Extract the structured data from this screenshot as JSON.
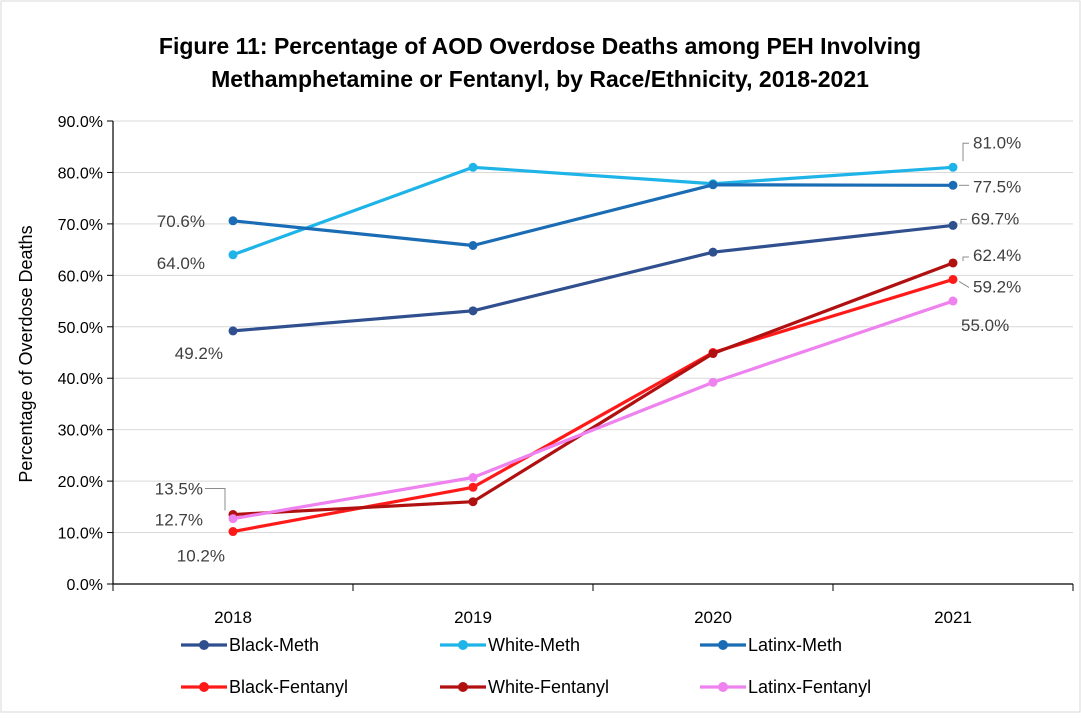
{
  "chart_data": {
    "type": "line",
    "title_lines": [
      "Figure 11: Percentage of AOD Overdose Deaths among PEH Involving",
      "Methamphetamine or Fentanyl, by Race/Ethnicity, 2018-2021"
    ],
    "xlabel": "",
    "ylabel": "Percentage of Overdose Deaths",
    "categories": [
      "2018",
      "2019",
      "2020",
      "2021"
    ],
    "ylim": [
      0,
      90
    ],
    "yticks": [
      0,
      10,
      20,
      30,
      40,
      50,
      60,
      70,
      80,
      90
    ],
    "ytick_labels": [
      "0.0%",
      "10.0%",
      "20.0%",
      "30.0%",
      "40.0%",
      "50.0%",
      "60.0%",
      "70.0%",
      "80.0%",
      "90.0%"
    ],
    "grid": true,
    "legend_position": "bottom",
    "series": [
      {
        "name": "Black-Meth",
        "color": "#2f4f8f",
        "values": [
          49.2,
          53.1,
          64.5,
          69.7
        ]
      },
      {
        "name": "White-Meth",
        "color": "#1fb4e8",
        "values": [
          64.0,
          81.0,
          77.8,
          81.0
        ]
      },
      {
        "name": "Latinx-Meth",
        "color": "#1a6db5",
        "values": [
          70.6,
          65.8,
          77.6,
          77.5
        ]
      },
      {
        "name": "Black-Fentanyl",
        "color": "#ff1a1a",
        "values": [
          10.2,
          18.8,
          45.0,
          59.2
        ]
      },
      {
        "name": "White-Fentanyl",
        "color": "#b01010",
        "values": [
          13.5,
          16.0,
          44.8,
          62.4
        ]
      },
      {
        "name": "Latinx-Fentanyl",
        "color": "#ee82ee",
        "values": [
          12.7,
          20.7,
          39.2,
          55.0
        ]
      }
    ],
    "data_labels": [
      {
        "text": "70.6%"
      },
      {
        "text": "64.0%"
      },
      {
        "text": "49.2%"
      },
      {
        "text": "13.5%"
      },
      {
        "text": "12.7%"
      },
      {
        "text": "10.2%"
      },
      {
        "text": "81.0%"
      },
      {
        "text": "77.5%"
      },
      {
        "text": "69.7%"
      },
      {
        "text": "62.4%"
      },
      {
        "text": "59.2%"
      },
      {
        "text": "55.0%"
      }
    ]
  }
}
